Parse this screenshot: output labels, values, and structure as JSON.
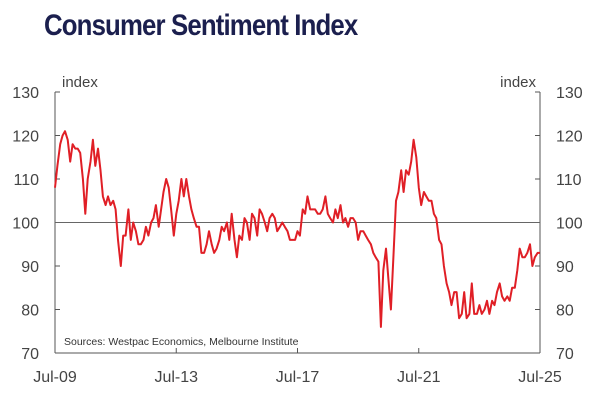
{
  "chart_data": {
    "type": "line",
    "title": "Consumer Sentiment Index",
    "ylabel_left": "index",
    "ylabel_right": "index",
    "ylim": [
      70,
      130
    ],
    "yticks": [
      70,
      80,
      90,
      100,
      110,
      120,
      130
    ],
    "xlim": [
      2009.5,
      2025.5
    ],
    "xticks": [
      {
        "label": "Jul-09",
        "t": 2009.5
      },
      {
        "label": "Jul-13",
        "t": 2013.5
      },
      {
        "label": "Jul-17",
        "t": 2017.5
      },
      {
        "label": "Jul-21",
        "t": 2021.5
      },
      {
        "label": "Jul-25",
        "t": 2025.5
      }
    ],
    "reference_line": 100,
    "source_note": "Sources: Westpac Economics, Melbourne Institute",
    "line_color": "#e01f26",
    "series": [
      {
        "name": "",
        "points": [
          [
            2009.5,
            108
          ],
          [
            2009.58,
            113
          ],
          [
            2009.67,
            118
          ],
          [
            2009.75,
            120
          ],
          [
            2009.83,
            121
          ],
          [
            2009.92,
            119
          ],
          [
            2010.0,
            114
          ],
          [
            2010.08,
            118
          ],
          [
            2010.17,
            117
          ],
          [
            2010.25,
            117
          ],
          [
            2010.33,
            116
          ],
          [
            2010.42,
            110
          ],
          [
            2010.5,
            102
          ],
          [
            2010.58,
            110
          ],
          [
            2010.67,
            114
          ],
          [
            2010.75,
            119
          ],
          [
            2010.83,
            113
          ],
          [
            2010.92,
            117
          ],
          [
            2011.0,
            112
          ],
          [
            2011.08,
            106
          ],
          [
            2011.17,
            104
          ],
          [
            2011.25,
            106
          ],
          [
            2011.33,
            104
          ],
          [
            2011.42,
            105
          ],
          [
            2011.5,
            103
          ],
          [
            2011.58,
            96
          ],
          [
            2011.67,
            90
          ],
          [
            2011.75,
            97
          ],
          [
            2011.83,
            97
          ],
          [
            2011.92,
            103
          ],
          [
            2012.0,
            96
          ],
          [
            2012.08,
            100
          ],
          [
            2012.17,
            98
          ],
          [
            2012.25,
            95
          ],
          [
            2012.33,
            95
          ],
          [
            2012.42,
            96
          ],
          [
            2012.5,
            99
          ],
          [
            2012.58,
            97
          ],
          [
            2012.67,
            100
          ],
          [
            2012.75,
            101
          ],
          [
            2012.83,
            104
          ],
          [
            2012.92,
            99
          ],
          [
            2013.0,
            103
          ],
          [
            2013.08,
            107
          ],
          [
            2013.17,
            110
          ],
          [
            2013.25,
            108
          ],
          [
            2013.33,
            103
          ],
          [
            2013.42,
            97
          ],
          [
            2013.5,
            102
          ],
          [
            2013.58,
            105
          ],
          [
            2013.67,
            110
          ],
          [
            2013.75,
            106
          ],
          [
            2013.83,
            110
          ],
          [
            2013.92,
            106
          ],
          [
            2014.0,
            103
          ],
          [
            2014.08,
            101
          ],
          [
            2014.17,
            99
          ],
          [
            2014.25,
            99
          ],
          [
            2014.33,
            93
          ],
          [
            2014.42,
            93
          ],
          [
            2014.5,
            95
          ],
          [
            2014.58,
            98
          ],
          [
            2014.67,
            95
          ],
          [
            2014.75,
            93
          ],
          [
            2014.83,
            94
          ],
          [
            2014.92,
            96
          ],
          [
            2015.0,
            99
          ],
          [
            2015.08,
            98
          ],
          [
            2015.17,
            100
          ],
          [
            2015.25,
            96
          ],
          [
            2015.33,
            102
          ],
          [
            2015.42,
            96
          ],
          [
            2015.5,
            92
          ],
          [
            2015.58,
            97
          ],
          [
            2015.67,
            96
          ],
          [
            2015.75,
            101
          ],
          [
            2015.83,
            100
          ],
          [
            2015.92,
            96
          ],
          [
            2016.0,
            102
          ],
          [
            2016.08,
            101
          ],
          [
            2016.17,
            97
          ],
          [
            2016.25,
            103
          ],
          [
            2016.33,
            102
          ],
          [
            2016.42,
            100
          ],
          [
            2016.5,
            98
          ],
          [
            2016.58,
            101
          ],
          [
            2016.67,
            102
          ],
          [
            2016.75,
            101
          ],
          [
            2016.83,
            98
          ],
          [
            2016.92,
            99
          ],
          [
            2017.0,
            100
          ],
          [
            2017.08,
            99
          ],
          [
            2017.17,
            98
          ],
          [
            2017.25,
            96
          ],
          [
            2017.33,
            96
          ],
          [
            2017.42,
            96
          ],
          [
            2017.5,
            98
          ],
          [
            2017.58,
            97
          ],
          [
            2017.67,
            103
          ],
          [
            2017.75,
            102
          ],
          [
            2017.83,
            106
          ],
          [
            2017.92,
            103
          ],
          [
            2018.0,
            103
          ],
          [
            2018.08,
            103
          ],
          [
            2018.17,
            102
          ],
          [
            2018.25,
            102
          ],
          [
            2018.33,
            103
          ],
          [
            2018.42,
            106
          ],
          [
            2018.5,
            102
          ],
          [
            2018.58,
            101
          ],
          [
            2018.67,
            100
          ],
          [
            2018.75,
            103
          ],
          [
            2018.83,
            101
          ],
          [
            2018.92,
            104
          ],
          [
            2019.0,
            100
          ],
          [
            2019.08,
            101
          ],
          [
            2019.17,
            99
          ],
          [
            2019.25,
            101
          ],
          [
            2019.33,
            101
          ],
          [
            2019.42,
            100
          ],
          [
            2019.5,
            96
          ],
          [
            2019.58,
            98
          ],
          [
            2019.67,
            98
          ],
          [
            2019.75,
            97
          ],
          [
            2019.83,
            96
          ],
          [
            2019.92,
            95
          ],
          [
            2020.0,
            93
          ],
          [
            2020.08,
            92
          ],
          [
            2020.17,
            91
          ],
          [
            2020.25,
            76
          ],
          [
            2020.33,
            89
          ],
          [
            2020.42,
            94
          ],
          [
            2020.5,
            87
          ],
          [
            2020.58,
            80
          ],
          [
            2020.67,
            93
          ],
          [
            2020.75,
            105
          ],
          [
            2020.83,
            107
          ],
          [
            2020.92,
            112
          ],
          [
            2021.0,
            107
          ],
          [
            2021.08,
            112
          ],
          [
            2021.17,
            111
          ],
          [
            2021.25,
            114
          ],
          [
            2021.33,
            119
          ],
          [
            2021.42,
            115
          ],
          [
            2021.5,
            108
          ],
          [
            2021.58,
            104
          ],
          [
            2021.67,
            107
          ],
          [
            2021.75,
            106
          ],
          [
            2021.83,
            105
          ],
          [
            2021.92,
            105
          ],
          [
            2022.0,
            102
          ],
          [
            2022.08,
            101
          ],
          [
            2022.17,
            96
          ],
          [
            2022.25,
            95
          ],
          [
            2022.33,
            90
          ],
          [
            2022.42,
            86
          ],
          [
            2022.5,
            84
          ],
          [
            2022.58,
            81
          ],
          [
            2022.67,
            84
          ],
          [
            2022.75,
            84
          ],
          [
            2022.83,
            78
          ],
          [
            2022.92,
            79
          ],
          [
            2023.0,
            84
          ],
          [
            2023.08,
            78
          ],
          [
            2023.17,
            79
          ],
          [
            2023.25,
            86
          ],
          [
            2023.33,
            79
          ],
          [
            2023.42,
            79
          ],
          [
            2023.5,
            81
          ],
          [
            2023.58,
            79
          ],
          [
            2023.67,
            80
          ],
          [
            2023.75,
            82
          ],
          [
            2023.83,
            79
          ],
          [
            2023.92,
            82
          ],
          [
            2024.0,
            81
          ],
          [
            2024.08,
            84
          ],
          [
            2024.17,
            86
          ],
          [
            2024.25,
            83
          ],
          [
            2024.33,
            82
          ],
          [
            2024.42,
            83
          ],
          [
            2024.5,
            82
          ],
          [
            2024.58,
            85
          ],
          [
            2024.67,
            85
          ],
          [
            2024.75,
            89
          ],
          [
            2024.83,
            94
          ],
          [
            2024.92,
            92
          ],
          [
            2025.0,
            92
          ],
          [
            2025.08,
            93
          ],
          [
            2025.17,
            95
          ],
          [
            2025.25,
            90
          ],
          [
            2025.33,
            92
          ],
          [
            2025.42,
            93
          ],
          [
            2025.5,
            93
          ]
        ]
      }
    ]
  }
}
